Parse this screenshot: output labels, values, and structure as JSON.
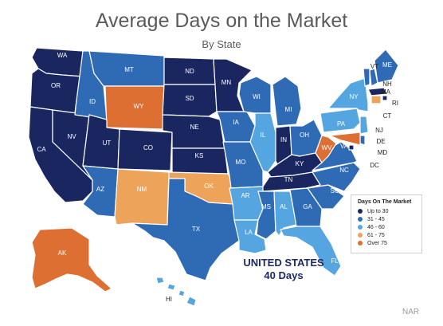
{
  "title": "Average Days on the Market",
  "subtitle": "By State",
  "colors": {
    "up_to_30": "#1a2660",
    "d31_45": "#2f6ab5",
    "d46_60": "#55a6e0",
    "d61_75": "#eda45a",
    "over_75": "#de6f32"
  },
  "legend": {
    "title": "Days On The Market",
    "items": [
      {
        "label": "Up to 30",
        "category": "up_to_30"
      },
      {
        "label": "31 - 45",
        "category": "d31_45"
      },
      {
        "label": "46 - 60",
        "category": "d46_60"
      },
      {
        "label": "61 - 75",
        "category": "d61_75"
      },
      {
        "label": "Over 75",
        "category": "over_75"
      }
    ]
  },
  "national": {
    "line1": "UNITED STATES",
    "line2": "40 Days"
  },
  "source": "NAR",
  "states": [
    {
      "abbr": "WA",
      "category": "up_to_30"
    },
    {
      "abbr": "OR",
      "category": "up_to_30"
    },
    {
      "abbr": "CA",
      "category": "up_to_30"
    },
    {
      "abbr": "NV",
      "category": "up_to_30"
    },
    {
      "abbr": "ID",
      "category": "d31_45"
    },
    {
      "abbr": "MT",
      "category": "d31_45"
    },
    {
      "abbr": "WY",
      "category": "over_75"
    },
    {
      "abbr": "UT",
      "category": "up_to_30"
    },
    {
      "abbr": "CO",
      "category": "up_to_30"
    },
    {
      "abbr": "AZ",
      "category": "d31_45"
    },
    {
      "abbr": "NM",
      "category": "d61_75"
    },
    {
      "abbr": "ND",
      "category": "up_to_30"
    },
    {
      "abbr": "SD",
      "category": "up_to_30"
    },
    {
      "abbr": "NE",
      "category": "up_to_30"
    },
    {
      "abbr": "KS",
      "category": "up_to_30"
    },
    {
      "abbr": "OK",
      "category": "d61_75"
    },
    {
      "abbr": "TX",
      "category": "d31_45"
    },
    {
      "abbr": "MN",
      "category": "up_to_30"
    },
    {
      "abbr": "IA",
      "category": "d31_45"
    },
    {
      "abbr": "MO",
      "category": "d31_45"
    },
    {
      "abbr": "AR",
      "category": "d46_60"
    },
    {
      "abbr": "LA",
      "category": "d46_60"
    },
    {
      "abbr": "WI",
      "category": "d31_45"
    },
    {
      "abbr": "IL",
      "category": "d46_60"
    },
    {
      "abbr": "MI",
      "category": "d31_45"
    },
    {
      "abbr": "IN",
      "category": "up_to_30"
    },
    {
      "abbr": "OH",
      "category": "d31_45"
    },
    {
      "abbr": "KY",
      "category": "up_to_30"
    },
    {
      "abbr": "TN",
      "category": "up_to_30"
    },
    {
      "abbr": "MS",
      "category": "d31_45"
    },
    {
      "abbr": "AL",
      "category": "d46_60"
    },
    {
      "abbr": "GA",
      "category": "d31_45"
    },
    {
      "abbr": "FL",
      "category": "d46_60"
    },
    {
      "abbr": "SC",
      "category": "d31_45"
    },
    {
      "abbr": "NC",
      "category": "d31_45"
    },
    {
      "abbr": "VA",
      "category": "d31_45"
    },
    {
      "abbr": "WV",
      "category": "over_75"
    },
    {
      "abbr": "PA",
      "category": "d46_60"
    },
    {
      "abbr": "NY",
      "category": "d46_60"
    },
    {
      "abbr": "VT",
      "category": "d31_45"
    },
    {
      "abbr": "NH",
      "category": "d31_45"
    },
    {
      "abbr": "ME",
      "category": "d31_45"
    },
    {
      "abbr": "MA",
      "category": "up_to_30"
    },
    {
      "abbr": "RI",
      "category": "up_to_30"
    },
    {
      "abbr": "CT",
      "category": "d61_75"
    },
    {
      "abbr": "NJ",
      "category": "d46_60"
    },
    {
      "abbr": "DE",
      "category": "d31_45"
    },
    {
      "abbr": "MD",
      "category": "over_75"
    },
    {
      "abbr": "DC",
      "category": "up_to_30"
    },
    {
      "abbr": "AK",
      "category": "over_75"
    },
    {
      "abbr": "HI",
      "category": "d46_60"
    }
  ]
}
